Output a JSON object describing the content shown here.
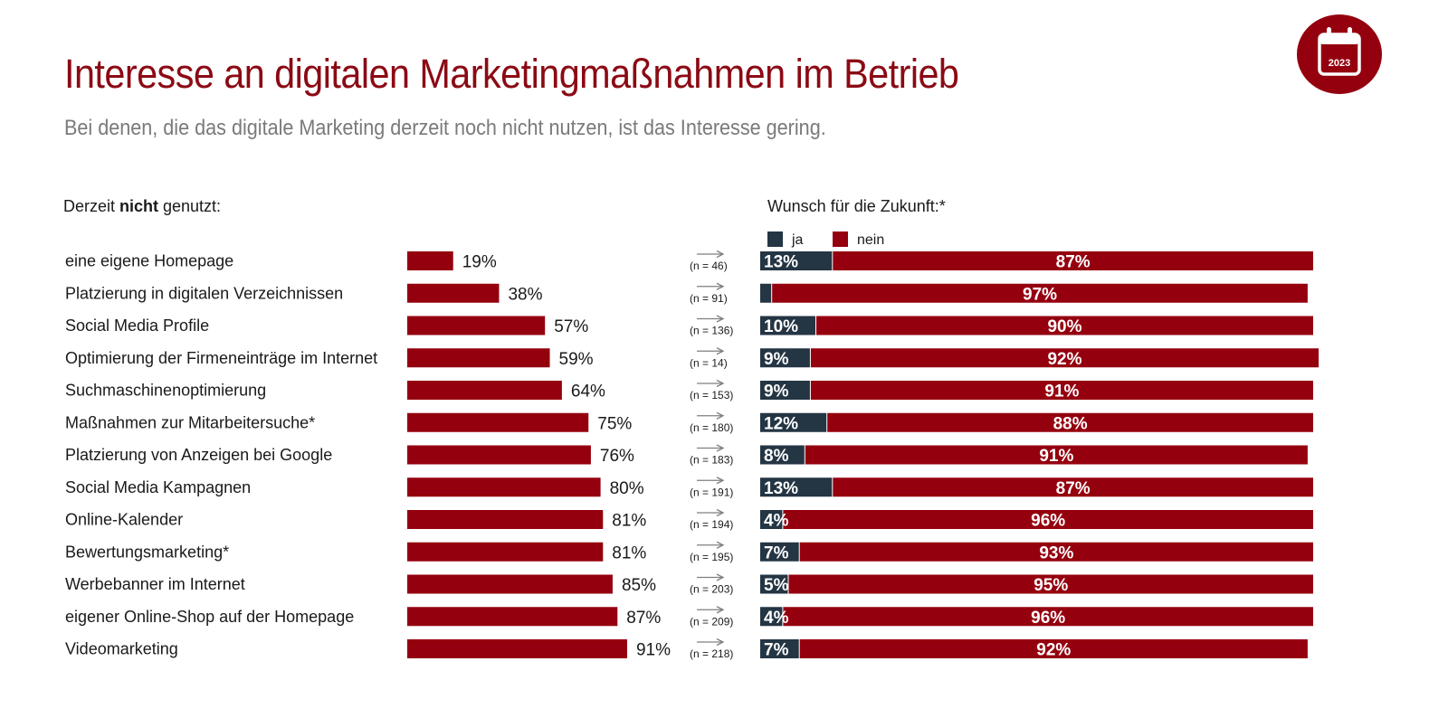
{
  "header": {
    "title": "Interesse an digitalen Marketingmaßnahmen im Betrieb",
    "subtitle": "Bei denen, die das digitale Marketing derzeit noch nicht nutzen, ist das Interesse gering.",
    "badge_year": "2023",
    "badge_icon": "calendar-icon"
  },
  "colors": {
    "title": "#8b0a14",
    "subtitle": "#7a7a7a",
    "bar_red": "#95000f",
    "bar_dark": "#243544",
    "badge": "#95000f",
    "arrow": "#7f7f7f"
  },
  "chart_data": [
    {
      "type": "bar",
      "orientation": "horizontal",
      "title_parts": [
        "Derzeit ",
        "nicht",
        " genutzt:"
      ],
      "xlim": [
        0,
        100
      ],
      "grid": false,
      "categories": [
        "eine eigene Homepage",
        "Platzierung in digitalen Verzeichnissen",
        "Social Media Profile",
        "Optimierung der Firmeneinträge im Internet",
        "Suchmaschinenoptimierung",
        "Maßnahmen zur Mitarbeitersuche*",
        "Platzierung von Anzeigen bei Google",
        "Social Media Kampagnen",
        "Online-Kalender",
        "Bewertungsmarketing*",
        "Werbebanner im Internet",
        "eigener Online-Shop auf der Homepage",
        "Videomarketing"
      ],
      "values": [
        19,
        38,
        57,
        59,
        64,
        75,
        76,
        80,
        81,
        81,
        85,
        87,
        91
      ],
      "value_labels": [
        "19%",
        "38%",
        "57%",
        "59%",
        "64%",
        "75%",
        "76%",
        "80%",
        "81%",
        "81%",
        "85%",
        "87%",
        "91%"
      ]
    },
    {
      "type": "bar",
      "orientation": "horizontal",
      "stacked": true,
      "title": "Wunsch für die Zukunft:*",
      "legend_position": "top-left",
      "xlim": [
        0,
        100
      ],
      "grid": false,
      "n_labels": [
        "(n = 46)",
        "(n = 91)",
        "(n = 136)",
        "(n = 14)",
        "(n = 153)",
        "(n = 180)",
        "(n = 183)",
        "(n = 191)",
        "(n = 194)",
        "(n = 195)",
        "(n = 203)",
        "(n = 209)",
        "(n = 218)"
      ],
      "series": [
        {
          "name": "ja",
          "values": [
            13,
            2,
            10,
            9,
            9,
            12,
            8,
            13,
            4,
            7,
            5,
            4,
            7
          ],
          "labels": [
            "13%",
            "",
            "10%",
            "9%",
            "9%",
            "12%",
            "8%",
            "13%",
            "4%",
            "7%",
            "5%",
            "4%",
            "7%"
          ]
        },
        {
          "name": "nein",
          "values": [
            87,
            97,
            90,
            92,
            91,
            88,
            91,
            87,
            96,
            93,
            95,
            96,
            92
          ],
          "labels": [
            "87%",
            "97%",
            "90%",
            "92%",
            "91%",
            "88%",
            "91%",
            "87%",
            "96%",
            "93%",
            "95%",
            "96%",
            "92%"
          ]
        }
      ]
    }
  ]
}
